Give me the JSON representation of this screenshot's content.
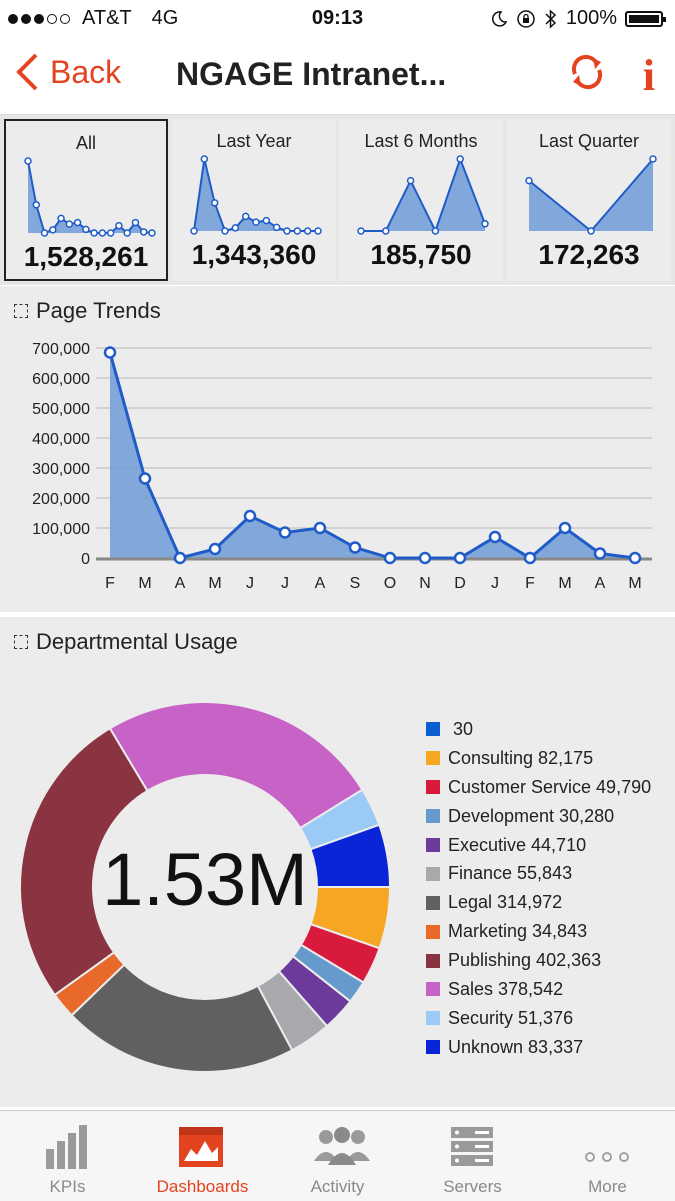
{
  "status": {
    "carrier": "AT&T",
    "network": "4G",
    "time": "09:13",
    "battery": "100%"
  },
  "nav": {
    "back_label": "Back",
    "title": "NGAGE Intranet..."
  },
  "tiles": [
    {
      "label": "All",
      "value": "1,528,261",
      "spark": [
        690000,
        270000,
        0,
        30000,
        140000,
        85000,
        100000,
        35000,
        0,
        0,
        0,
        70000,
        0,
        100000,
        10000,
        0
      ]
    },
    {
      "label": "Last Year",
      "value": "1,343,360",
      "spark": [
        0,
        690000,
        270000,
        0,
        30000,
        140000,
        85000,
        100000,
        35000,
        0,
        0,
        0,
        0
      ]
    },
    {
      "label": "Last 6 Months",
      "value": "185,750",
      "spark": [
        0,
        0,
        70000,
        0,
        100000,
        10000
      ]
    },
    {
      "label": "Last Quarter",
      "value": "172,263",
      "spark": [
        70000,
        0,
        100000
      ]
    }
  ],
  "page_trends": {
    "title": "Page Trends",
    "chart_data": {
      "type": "area",
      "categories": [
        "F",
        "M",
        "A",
        "M",
        "J",
        "J",
        "A",
        "S",
        "O",
        "N",
        "D",
        "J",
        "F",
        "M",
        "A",
        "M"
      ],
      "values": [
        685000,
        265000,
        0,
        30000,
        140000,
        85000,
        100000,
        35000,
        0,
        0,
        0,
        70000,
        0,
        100000,
        15000,
        0
      ],
      "ylim": [
        0,
        700000
      ],
      "yticks": [
        "700,000",
        "600,000",
        "500,000",
        "400,000",
        "300,000",
        "200,000",
        "100,000",
        "0"
      ],
      "grid": true
    }
  },
  "departmental": {
    "title": "Departmental Usage",
    "center_label": "1.53M",
    "chart_data": {
      "type": "pie",
      "donut": true,
      "legend_position": "right",
      "series": [
        {
          "name": "30",
          "label": " 30",
          "value": 30,
          "color": "#0a5fd0"
        },
        {
          "name": "Consulting",
          "label": "Consulting 82,175",
          "value": 82175,
          "color": "#f5a623"
        },
        {
          "name": "Customer Service",
          "label": "Customer Service 49,790",
          "value": 49790,
          "color": "#d81b3c"
        },
        {
          "name": "Development",
          "label": "Development 30,280",
          "value": 30280,
          "color": "#6699cc"
        },
        {
          "name": "Executive",
          "label": "Executive 44,710",
          "value": 44710,
          "color": "#6b3a9a"
        },
        {
          "name": "Finance",
          "label": "Finance 55,843",
          "value": 55843,
          "color": "#a9a9ad"
        },
        {
          "name": "Legal",
          "label": "Legal 314,972",
          "value": 314972,
          "color": "#606060"
        },
        {
          "name": "Marketing",
          "label": "Marketing 34,843",
          "value": 34843,
          "color": "#e8692a"
        },
        {
          "name": "Publishing",
          "label": "Publishing 402,363",
          "value": 402363,
          "color": "#8a3441"
        },
        {
          "name": "Sales",
          "label": "Sales 378,542",
          "value": 378542,
          "color": "#c762c7"
        },
        {
          "name": "Security",
          "label": "Security 51,376",
          "value": 51376,
          "color": "#9ccaf7"
        },
        {
          "name": "Unknown",
          "label": "Unknown 83,337",
          "value": 83337,
          "color": "#0a24d8"
        }
      ],
      "draw_order": [
        1,
        2,
        3,
        4,
        5,
        6,
        7,
        8,
        9,
        10,
        11,
        0
      ]
    }
  },
  "tabs": [
    {
      "label": "KPIs",
      "icon": "bar-chart-icon",
      "active": false
    },
    {
      "label": "Dashboards",
      "icon": "dashboard-icon",
      "active": true
    },
    {
      "label": "Activity",
      "icon": "users-icon",
      "active": false
    },
    {
      "label": "Servers",
      "icon": "server-icon",
      "active": false
    },
    {
      "label": "More",
      "icon": "more-dots-icon",
      "active": false
    }
  ],
  "colors": {
    "accent": "#e4431f",
    "chart_line": "#1f5cc8",
    "chart_fill": "#6f9bd8",
    "panel_bg": "#ececec"
  }
}
